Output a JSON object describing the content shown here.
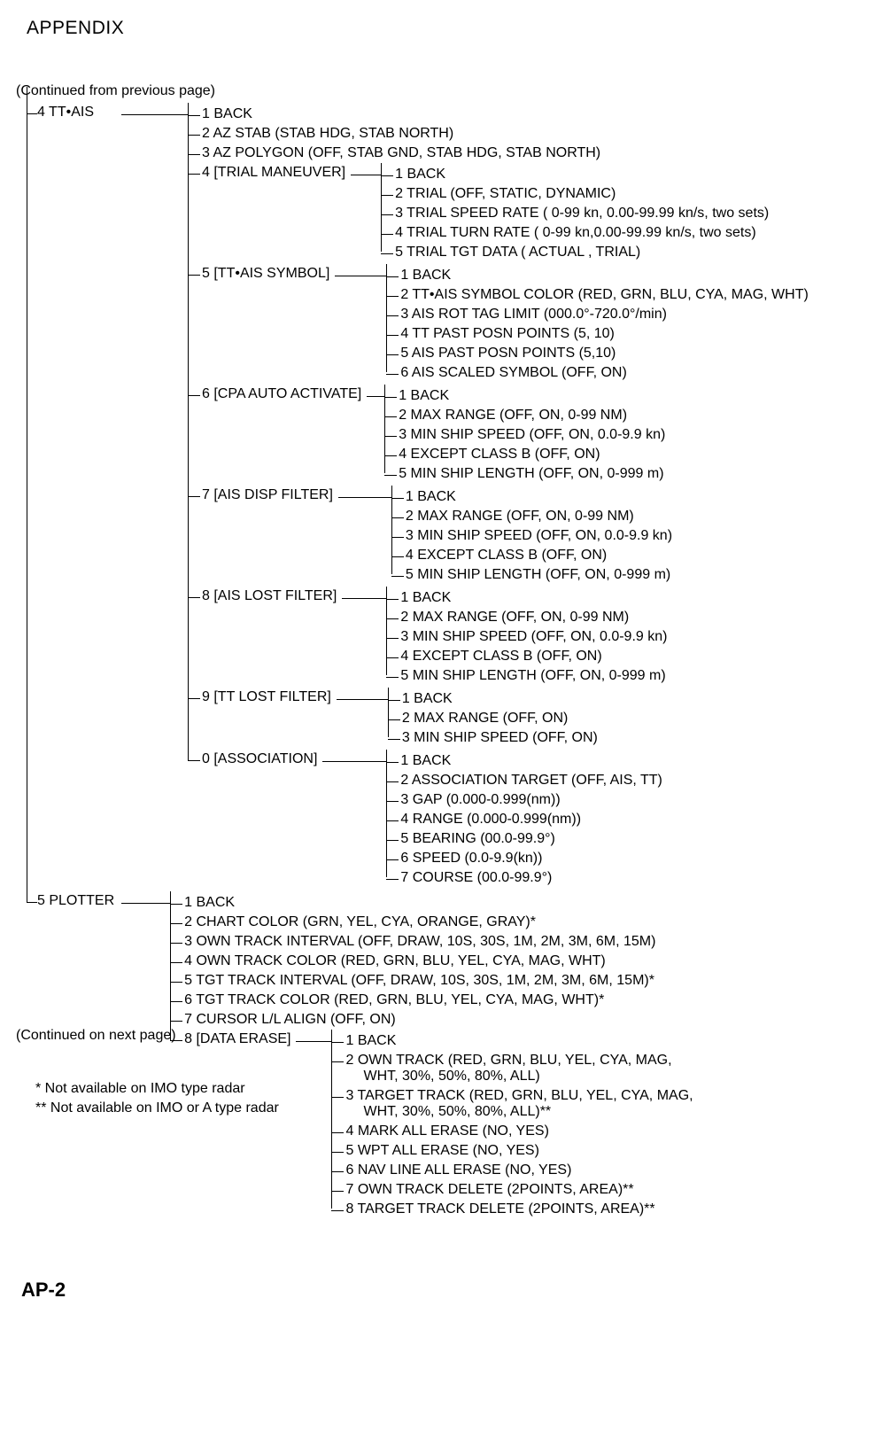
{
  "header": {
    "title": "APPENDIX",
    "continued_from": "(Continued from previous page)",
    "continued_to": "(Continued on next page)",
    "page_number": "AP-2"
  },
  "footnotes": {
    "note1": "*  Not available on IMO type radar",
    "note2": "** Not available on IMO or A type radar"
  },
  "tree": {
    "root": [
      {
        "label": "4 TT•AIS",
        "hw": 75,
        "children": [
          {
            "label": "1 BACK"
          },
          {
            "label": "2 AZ STAB (STAB HDG, STAB NORTH)"
          },
          {
            "label": "3 AZ POLYGON (OFF, STAB GND, STAB HDG, STAB NORTH)"
          },
          {
            "label": "4 [TRIAL MANEUVER]",
            "hw": 34,
            "children": [
              {
                "label": "1 BACK"
              },
              {
                "label": "2 TRIAL (OFF, STATIC, DYNAMIC)"
              },
              {
                "label": "3 TRIAL SPEED RATE ( 0-99 kn, 0.00-99.99 kn/s, two sets)"
              },
              {
                "label": "4 TRIAL TURN RATE ( 0-99 kn,0.00-99.99 kn/s, two sets)"
              },
              {
                "label": "5 TRIAL TGT DATA ( ACTUAL , TRIAL)"
              }
            ]
          },
          {
            "label": "5 [TT•AIS SYMBOL]",
            "hw": 58,
            "children": [
              {
                "label": "1 BACK"
              },
              {
                "label": "2 TT•AIS SYMBOL COLOR (RED, GRN, BLU, CYA, MAG, WHT)"
              },
              {
                "label": "3 AIS ROT TAG LIMIT (000.0°-720.0°/min)"
              },
              {
                "label": "4 TT PAST POSN POINTS (5, 10)"
              },
              {
                "label": "5 AIS PAST POSN POINTS (5,10)"
              },
              {
                "label": "6 AIS SCALED SYMBOL (OFF, ON)"
              }
            ]
          },
          {
            "label": "6 [CPA AUTO ACTIVATE]",
            "hw": 20,
            "children": [
              {
                "label": "1 BACK"
              },
              {
                "label": "2 MAX RANGE (OFF, ON, 0-99 NM)"
              },
              {
                "label": "3 MIN SHIP SPEED (OFF, ON, 0.0-9.9 kn)"
              },
              {
                "label": "4 EXCEPT CLASS B (OFF, ON)"
              },
              {
                "label": "5 MIN SHIP LENGTH (OFF, ON, 0-999 m)"
              }
            ]
          },
          {
            "label": "7 [AIS DISP FILTER]",
            "hw": 60,
            "children": [
              {
                "label": "1 BACK"
              },
              {
                "label": "2 MAX RANGE (OFF, ON, 0-99 NM)"
              },
              {
                "label": "3 MIN SHIP SPEED (OFF, ON, 0.0-9.9 kn)"
              },
              {
                "label": "4 EXCEPT CLASS B (OFF, ON)"
              },
              {
                "label": "5 MIN SHIP LENGTH (OFF, ON, 0-999 m)"
              }
            ]
          },
          {
            "label": "8 [AIS LOST FILTER]",
            "hw": 50,
            "children": [
              {
                "label": "1 BACK"
              },
              {
                "label": "2 MAX RANGE (OFF, ON, 0-99 NM)"
              },
              {
                "label": "3 MIN SHIP SPEED (OFF, ON, 0.0-9.9 kn)"
              },
              {
                "label": "4 EXCEPT CLASS B (OFF, ON)"
              },
              {
                "label": "5 MIN SHIP LENGTH (OFF, ON, 0-999 m)"
              }
            ]
          },
          {
            "label": "9 [TT LOST FILTER]",
            "hw": 58,
            "children": [
              {
                "label": "1 BACK"
              },
              {
                "label": "2 MAX RANGE (OFF, ON)"
              },
              {
                "label": "3 MIN SHIP SPEED (OFF, ON)"
              }
            ]
          },
          {
            "label": "0 [ASSOCIATION]",
            "hw": 72,
            "children": [
              {
                "label": "1 BACK"
              },
              {
                "label": "2 ASSOCIATION TARGET (OFF, AIS, TT)"
              },
              {
                "label": "3 GAP (0.000-0.999(nm))"
              },
              {
                "label": "4 RANGE (0.000-0.999(nm))"
              },
              {
                "label": "5 BEARING (00.0-99.9°)"
              },
              {
                "label": "6 SPEED (0.0-9.9(kn))"
              },
              {
                "label": "7 COURSE (00.0-99.9°)"
              }
            ]
          }
        ]
      },
      {
        "label": "5 PLOTTER",
        "hw": 55,
        "children": [
          {
            "label": "1 BACK"
          },
          {
            "label": "2 CHART COLOR (GRN, YEL, CYA, ORANGE, GRAY)*"
          },
          {
            "label": "3 OWN TRACK INTERVAL (OFF, DRAW, 10S, 30S, 1M, 2M, 3M, 6M, 15M)"
          },
          {
            "label": "4 OWN TRACK COLOR (RED, GRN, BLU, YEL, CYA, MAG, WHT)"
          },
          {
            "label": "5 TGT TRACK INTERVAL (OFF, DRAW, 10S, 30S, 1M, 2M, 3M, 6M, 15M)*"
          },
          {
            "label": "6 TGT TRACK COLOR  (RED, GRN, BLU, YEL, CYA, MAG, WHT)*"
          },
          {
            "label": "7 CURSOR L/L ALIGN (OFF, ON)"
          },
          {
            "label": "8 [DATA ERASE]",
            "hw": 40,
            "children": [
              {
                "label": "1 BACK"
              },
              {
                "label": "2 OWN TRACK (RED, GRN, BLU, YEL, CYA, MAG,",
                "cont": "WHT, 30%, 50%, 80%, ALL)"
              },
              {
                "label": "3 TARGET TRACK (RED, GRN, BLU, YEL, CYA, MAG,",
                "cont": "WHT, 30%, 50%, 80%, ALL)**"
              },
              {
                "label": "4 MARK ALL ERASE (NO, YES)"
              },
              {
                "label": "5 WPT ALL ERASE (NO, YES)"
              },
              {
                "label": "6 NAV LINE ALL ERASE (NO, YES)"
              },
              {
                "label": "7 OWN TRACK DELETE (2POINTS, AREA)**"
              },
              {
                "label": "8 TARGET TRACK DELETE (2POINTS, AREA)**"
              }
            ]
          }
        ]
      }
    ]
  }
}
